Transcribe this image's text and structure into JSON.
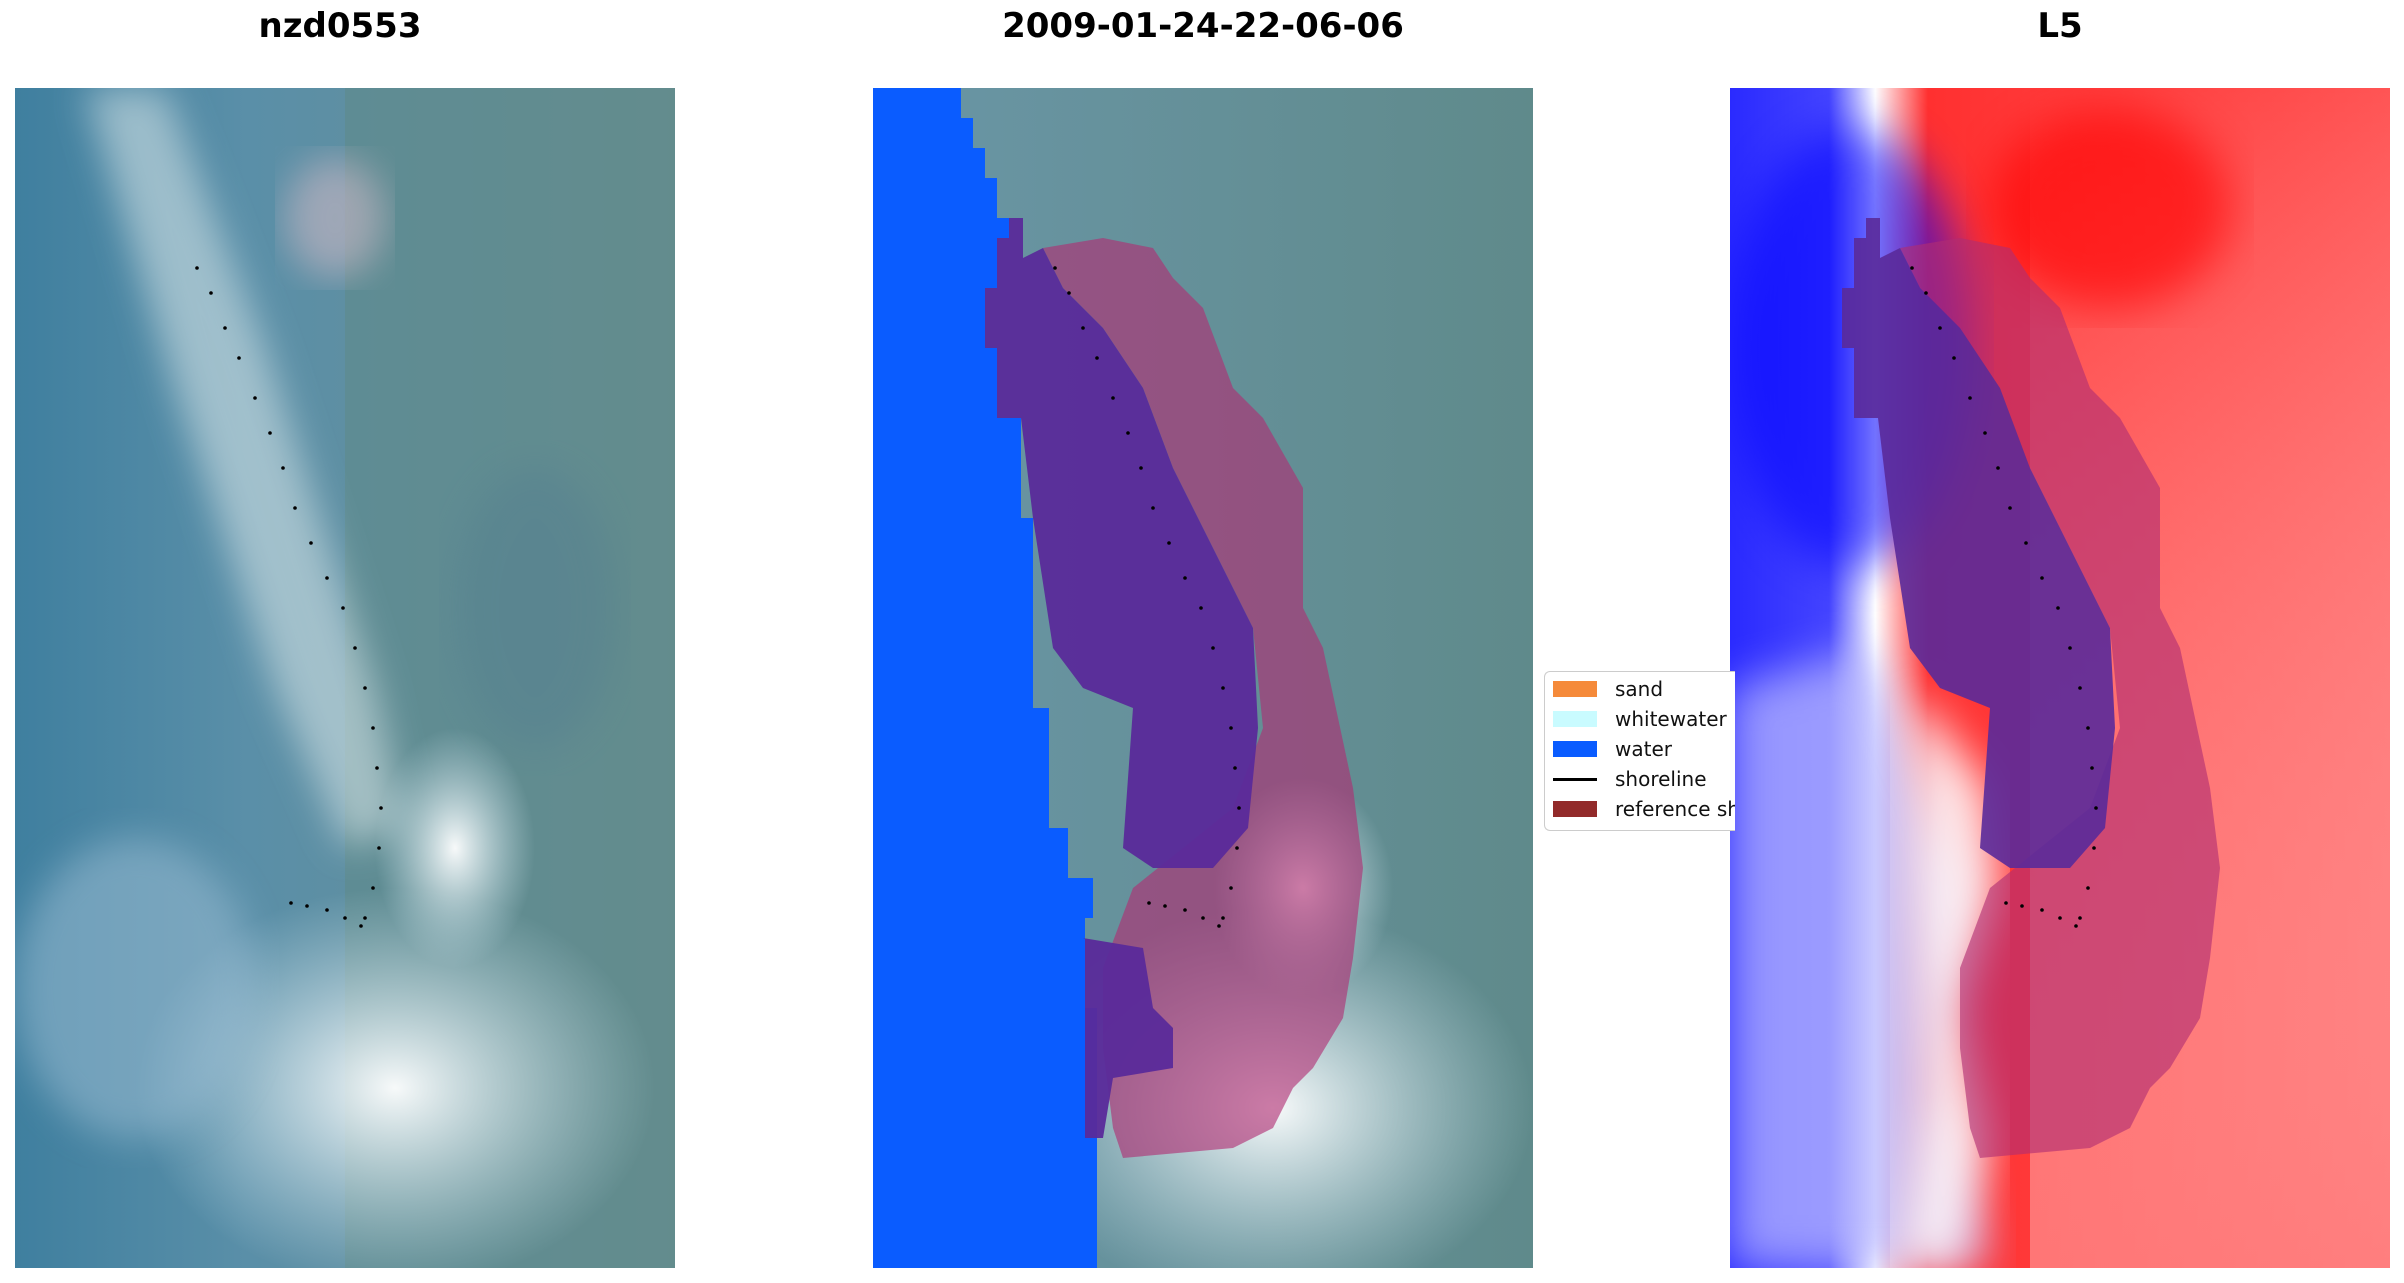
{
  "titles": {
    "left": "nzd0553",
    "center": "2009-01-24-22-06-06",
    "right": "L5"
  },
  "legend": {
    "items": [
      {
        "label": "sand",
        "color": "#f58a3a",
        "kind": "patch"
      },
      {
        "label": "whitewater",
        "color": "#c9fbff",
        "kind": "patch"
      },
      {
        "label": "water",
        "color": "#0a5cff",
        "kind": "patch"
      },
      {
        "label": "shoreline",
        "color": "#000000",
        "kind": "line"
      },
      {
        "label": "reference shoreline buffer",
        "color": "#922a2a",
        "kind": "patch"
      }
    ]
  },
  "colors": {
    "rgb_sea": "#4e87a3",
    "rgb_land": "#5d8a8a",
    "rgb_surf": "#e8f2f5",
    "water_class": "#0a5cff",
    "buffer_overlay": "#a8307a",
    "index_positive": "#ff2020",
    "index_negative": "#1a1aff"
  },
  "icons": [
    "satellite-rgb-image",
    "classified-image",
    "water-index-image",
    "shoreline-dots"
  ]
}
